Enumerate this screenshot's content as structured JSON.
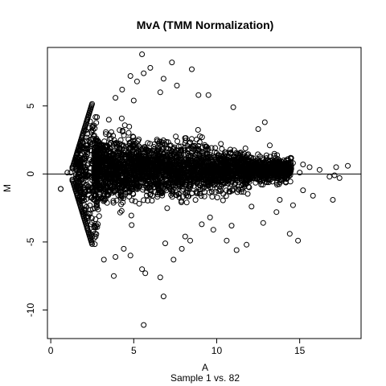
{
  "chart_data": {
    "type": "scatter",
    "title": "MvA (TMM Normalization)",
    "xlabel": "A",
    "sublabel": "Sample 1 vs. 82",
    "ylabel": "M",
    "xlim": [
      -0.2,
      18.7
    ],
    "ylim": [
      -12.1,
      9.3
    ],
    "x_ticks": [
      0,
      5,
      10,
      15
    ],
    "y_ticks": [
      -10,
      -5,
      0,
      5
    ],
    "reference_line_y": 0,
    "grid": false,
    "marker": "open-circle",
    "point_color": "#000000",
    "dense_region": {
      "description": "dense cloud of thousands of points",
      "x_range": [
        2.6,
        14.5
      ],
      "center_y": 0.3
    },
    "upper_edge_line": {
      "x": [
        1.3,
        1.6,
        1.9,
        2.2,
        2.5
      ],
      "y": [
        0.4,
        1.6,
        2.8,
        4.0,
        5.2
      ]
    },
    "lower_edge_line": {
      "x": [
        1.3,
        1.6,
        1.9,
        2.2,
        2.5
      ],
      "y": [
        -0.4,
        -1.6,
        -2.8,
        -4.0,
        -5.2
      ]
    },
    "points": [
      [
        0.6,
        -1.1
      ],
      [
        0.6,
        -1.1
      ],
      [
        1.0,
        0.1
      ],
      [
        1.2,
        0.1
      ],
      [
        1.3,
        0.5
      ],
      [
        1.3,
        -0.5
      ],
      [
        1.6,
        0.9
      ],
      [
        1.6,
        -0.9
      ],
      [
        5.5,
        8.8
      ],
      [
        7.3,
        8.2
      ],
      [
        6.0,
        7.8
      ],
      [
        8.5,
        7.7
      ],
      [
        5.6,
        7.4
      ],
      [
        4.8,
        7.2
      ],
      [
        6.8,
        7.0
      ],
      [
        5.2,
        6.8
      ],
      [
        7.6,
        6.5
      ],
      [
        4.3,
        6.2
      ],
      [
        6.6,
        6.0
      ],
      [
        8.9,
        5.8
      ],
      [
        9.5,
        5.8
      ],
      [
        11.0,
        4.9
      ],
      [
        3.9,
        5.6
      ],
      [
        5.0,
        5.4
      ],
      [
        12.9,
        3.8
      ],
      [
        12.5,
        3.3
      ],
      [
        13.2,
        2.1
      ],
      [
        14.2,
        1.0
      ],
      [
        14.6,
        0.8
      ],
      [
        15.2,
        0.7
      ],
      [
        15.6,
        0.5
      ],
      [
        16.2,
        0.3
      ],
      [
        16.8,
        -0.2
      ],
      [
        17.1,
        -0.1
      ],
      [
        17.4,
        -0.3
      ],
      [
        17.9,
        0.6
      ],
      [
        17.2,
        0.5
      ],
      [
        15.0,
        0.1
      ],
      [
        17.0,
        -1.9
      ],
      [
        15.8,
        -1.6
      ],
      [
        15.2,
        -1.2
      ],
      [
        14.6,
        -2.3
      ],
      [
        13.6,
        -2.8
      ],
      [
        14.4,
        -4.4
      ],
      [
        14.9,
        -4.9
      ],
      [
        12.8,
        -3.6
      ],
      [
        11.8,
        -5.2
      ],
      [
        11.2,
        -5.6
      ],
      [
        10.6,
        -4.9
      ],
      [
        9.8,
        -4.1
      ],
      [
        9.1,
        -3.7
      ],
      [
        8.4,
        -4.9
      ],
      [
        7.9,
        -5.5
      ],
      [
        7.4,
        -6.3
      ],
      [
        6.6,
        -7.6
      ],
      [
        5.5,
        -7.0
      ],
      [
        5.7,
        -7.3
      ],
      [
        4.8,
        -6.0
      ],
      [
        4.4,
        -5.5
      ],
      [
        3.9,
        -6.1
      ],
      [
        3.2,
        -6.3
      ],
      [
        3.8,
        -7.5
      ],
      [
        6.8,
        -9.0
      ],
      [
        5.6,
        -11.1
      ],
      [
        6.9,
        -5.1
      ],
      [
        8.1,
        -4.6
      ],
      [
        9.6,
        -3.2
      ],
      [
        10.9,
        -3.8
      ],
      [
        12.1,
        -2.4
      ],
      [
        13.8,
        -1.9
      ]
    ]
  }
}
